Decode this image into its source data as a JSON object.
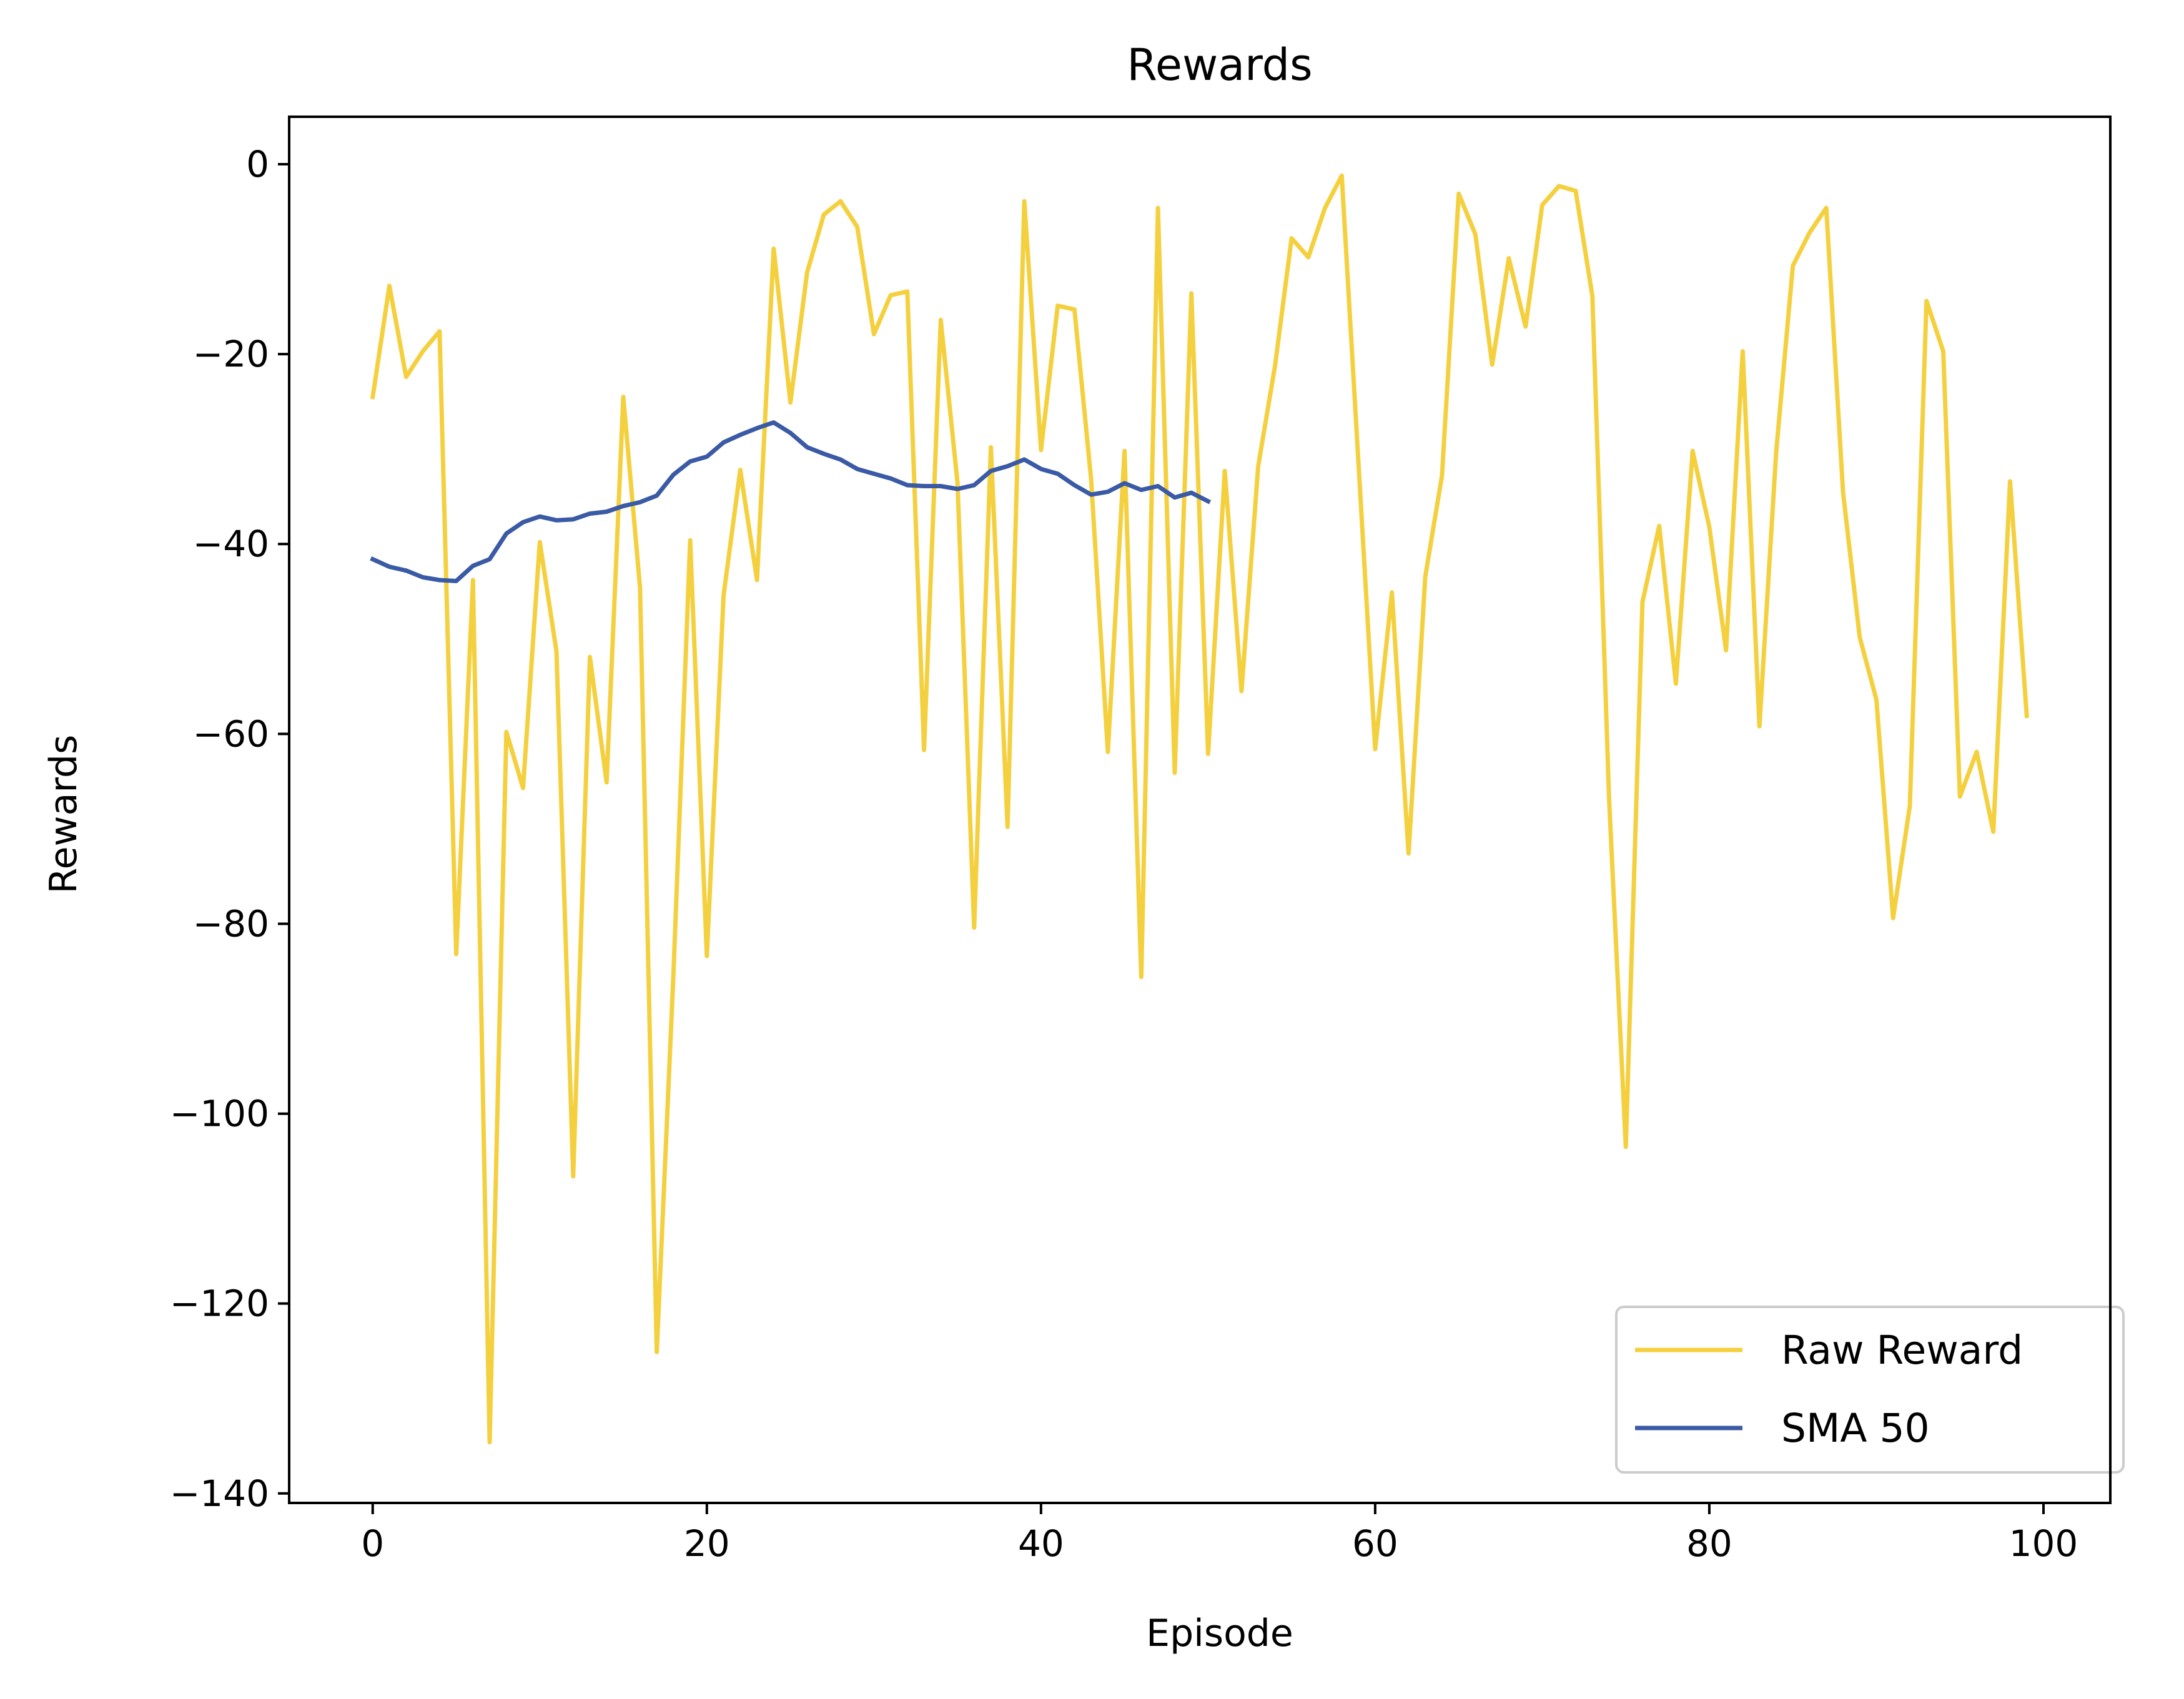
{
  "chart_data": {
    "type": "line",
    "title": "Rewards",
    "xlabel": "Episode",
    "ylabel": "Rewards",
    "xlim": [
      -5,
      104
    ],
    "ylim": [
      -141,
      5
    ],
    "xticks": [
      0,
      20,
      40,
      60,
      80,
      100
    ],
    "yticks": [
      0,
      -20,
      -40,
      -60,
      -80,
      -100,
      -120,
      -140
    ],
    "xtick_labels": [
      "0",
      "20",
      "40",
      "60",
      "80",
      "100"
    ],
    "ytick_labels": [
      "0",
      "−20",
      "−40",
      "−60",
      "−80",
      "−100",
      "−120",
      "−140"
    ],
    "grid": false,
    "legend_position": "bottom-right",
    "series": [
      {
        "name": "Raw Reward",
        "color": "#f4d03f",
        "x": [
          0,
          1,
          2,
          3,
          4,
          5,
          6,
          7,
          8,
          9,
          10,
          11,
          12,
          13,
          14,
          15,
          16,
          17,
          18,
          19,
          20,
          21,
          22,
          23,
          24,
          25,
          26,
          27,
          28,
          29,
          30,
          31,
          32,
          33,
          34,
          35,
          36,
          37,
          38,
          39,
          40,
          41,
          42,
          43,
          44,
          45,
          46,
          47,
          48,
          49,
          50,
          51,
          52,
          53,
          54,
          55,
          56,
          57,
          58,
          59,
          60,
          61,
          62,
          63,
          64,
          65,
          66,
          67,
          68,
          69,
          70,
          71,
          72,
          73,
          74,
          75,
          76,
          77,
          78,
          79,
          80,
          81,
          82,
          83,
          84,
          85,
          86,
          87,
          88,
          89,
          90,
          91,
          92,
          93,
          94,
          95,
          96,
          97,
          98,
          99
        ],
        "values": [
          -24.5,
          -12.8,
          -22.4,
          -19.7,
          -17.6,
          -83.2,
          -43.8,
          -134.6,
          -59.8,
          -65.7,
          -39.8,
          -51.3,
          -106.6,
          -51.9,
          -65.1,
          -24.5,
          -44.6,
          -125.1,
          -85.3,
          -39.6,
          -83.4,
          -45.4,
          -32.2,
          -43.8,
          -8.9,
          -25.1,
          -11.4,
          -5.3,
          -3.9,
          -6.6,
          -17.9,
          -13.8,
          -13.4,
          -61.7,
          -16.4,
          -33.5,
          -80.4,
          -29.8,
          -69.8,
          -3.9,
          -30.1,
          -14.9,
          -15.3,
          -33.2,
          -61.9,
          -30.2,
          -85.6,
          -4.6,
          -64.1,
          -13.6,
          -62.1,
          -32.3,
          -55.5,
          -31.8,
          -21.3,
          -7.8,
          -9.8,
          -4.6,
          -1.2,
          -31.4,
          -61.6,
          -45.1,
          -72.6,
          -43.4,
          -32.8,
          -3.1,
          -7.4,
          -21.1,
          -9.9,
          -17.1,
          -4.3,
          -2.3,
          -2.8,
          -13.9,
          -66.8,
          -103.5,
          -46.1,
          -38.1,
          -54.7,
          -30.2,
          -38.2,
          -51.2,
          -19.7,
          -59.2,
          -30.3,
          -10.7,
          -7.2,
          -4.6,
          -34.5,
          -49.8,
          -56.4,
          -79.4,
          -67.6,
          -14.4,
          -19.7,
          -66.6,
          -61.9,
          -70.3,
          -33.4,
          -58.1
        ]
      },
      {
        "name": "SMA 50",
        "color": "#3a5aa5",
        "x": [
          0,
          1,
          2,
          3,
          4,
          5,
          6,
          7,
          8,
          9,
          10,
          11,
          12,
          13,
          14,
          15,
          16,
          17,
          18,
          19,
          20,
          21,
          22,
          23,
          24,
          25,
          26,
          27,
          28,
          29,
          30,
          31,
          32,
          33,
          34,
          35,
          36,
          37,
          38,
          39,
          40,
          41,
          42,
          43,
          44,
          45,
          46,
          47,
          48,
          49,
          50
        ],
        "values": [
          -41.6,
          -42.4,
          -42.8,
          -43.5,
          -43.8,
          -43.9,
          -42.3,
          -41.6,
          -38.9,
          -37.7,
          -37.1,
          -37.5,
          -37.4,
          -36.8,
          -36.6,
          -36.0,
          -35.6,
          -34.9,
          -32.7,
          -31.3,
          -30.8,
          -29.3,
          -28.5,
          -27.8,
          -27.2,
          -28.3,
          -29.8,
          -30.5,
          -31.1,
          -32.1,
          -32.6,
          -33.1,
          -33.8,
          -33.9,
          -33.9,
          -34.2,
          -33.8,
          -32.3,
          -31.8,
          -31.1,
          -32.1,
          -32.6,
          -33.8,
          -34.8,
          -34.5,
          -33.6,
          -34.3,
          -33.9,
          -35.1,
          -34.6,
          -35.5
        ]
      }
    ]
  }
}
